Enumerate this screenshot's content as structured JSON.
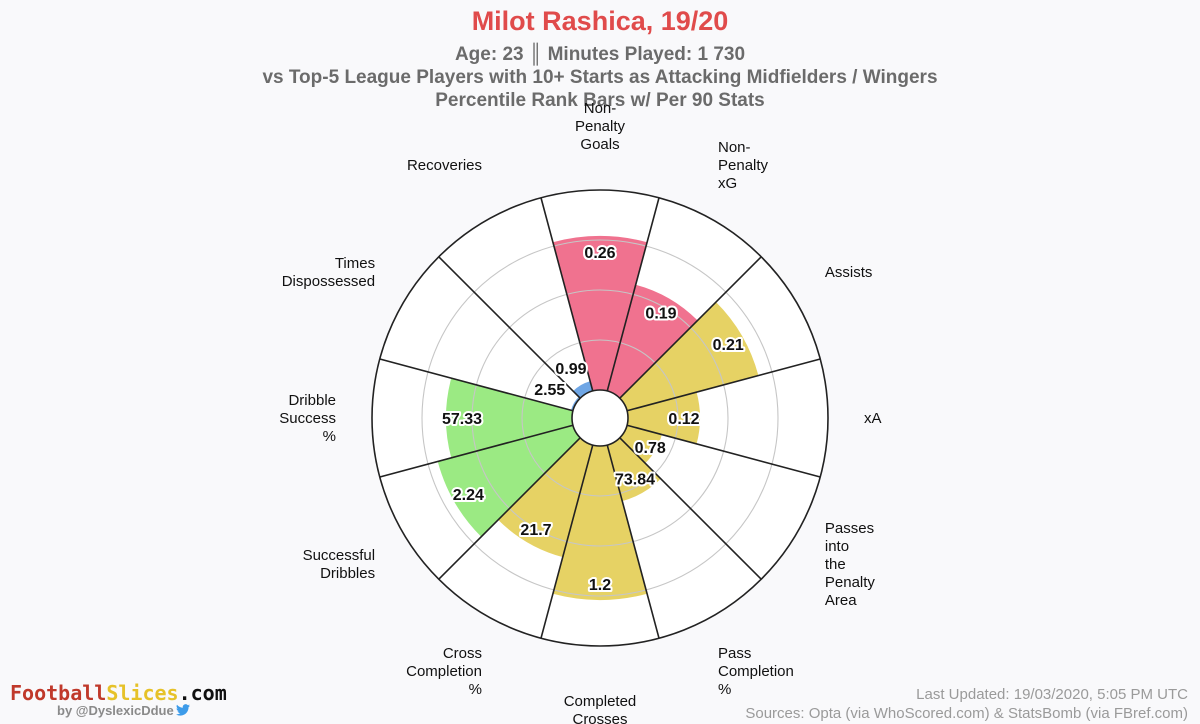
{
  "header": {
    "title": "Milot Rashica, 19/20",
    "subtitle_lines": [
      "Age: 23 ║ Minutes Played: 1 730",
      "vs Top-5 League Players with 10+ Starts as Attacking Midfielders / Wingers",
      "Percentile Rank Bars w/ Per 90 Stats"
    ]
  },
  "colors": {
    "title": "#e04b4b",
    "subtitle": "#6b6b6b",
    "attacking": "#f0728f",
    "passing": "#e6d264",
    "dribbling": "#9bea83",
    "defending": "#6fa6e5",
    "brand_a": "#c0392b",
    "brand_b": "#e6c229",
    "brand_c": "#111111",
    "twitter": "#3d9be9"
  },
  "chart_data": {
    "type": "polar-bar",
    "segments": [
      {
        "label": "Non-\nPenalty\nGoals",
        "value": "0.26",
        "percentile": 77,
        "group": "attacking"
      },
      {
        "label": "Non-\nPenalty\nxG",
        "value": "0.19",
        "percentile": 55,
        "group": "attacking"
      },
      {
        "label": "Assists",
        "value": "0.21",
        "percentile": 68,
        "group": "passing"
      },
      {
        "label": "xA",
        "value": "0.12",
        "percentile": 36,
        "group": "passing"
      },
      {
        "label": "Passes\ninto\nthe\nPenalty\nArea",
        "value": "0.78",
        "percentile": 18,
        "group": "passing"
      },
      {
        "label": "Pass\nCompletion\n%",
        "value": "73.84",
        "percentile": 29,
        "group": "passing"
      },
      {
        "label": "Completed\nCrosses",
        "value": "1.2",
        "percentile": 77,
        "group": "passing"
      },
      {
        "label": "Cross\nCompletion\n%",
        "value": "21.7",
        "percentile": 58,
        "group": "passing"
      },
      {
        "label": "Successful\nDribbles",
        "value": "2.24",
        "percentile": 70,
        "group": "dribbling"
      },
      {
        "label": "Dribble\nSuccess\n%",
        "value": "57.33",
        "percentile": 63,
        "group": "dribbling"
      },
      {
        "label": "Times\nDispossessed",
        "value": "2.55",
        "percentile": 1,
        "group": "defending"
      },
      {
        "label": "Recoveries",
        "value": "0.99",
        "percentile": 5,
        "group": "defending"
      }
    ],
    "rings": [
      25,
      50,
      75,
      100
    ]
  },
  "brand": {
    "part_a": "Football",
    "part_b": "Slices",
    "part_c": ".com",
    "byline": "by @DyslexicDdue"
  },
  "footer": {
    "updated": "Last Updated: 19/03/2020, 5:05 PM UTC",
    "sources": "Sources: Opta (via WhoScored.com) & StatsBomb (via FBref.com)"
  }
}
